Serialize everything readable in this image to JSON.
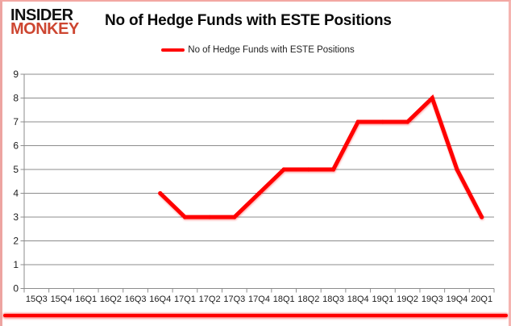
{
  "branding": {
    "logo_line1": "INSIDER",
    "logo_line2": "MONKEY",
    "logo_color_line1": "#111111",
    "logo_color_line2": "#cd4631"
  },
  "header": {
    "title": "No of Hedge Funds with ESTE Positions"
  },
  "legend": {
    "label": "No of Hedge Funds with ESTE Positions",
    "line_color": "#ff0000"
  },
  "chart_data": {
    "type": "line",
    "title": "No of Hedge Funds with ESTE Positions",
    "categories": [
      "15Q3",
      "15Q4",
      "16Q1",
      "16Q2",
      "16Q3",
      "16Q4",
      "17Q1",
      "17Q2",
      "17Q3",
      "17Q4",
      "18Q1",
      "18Q2",
      "18Q3",
      "18Q4",
      "19Q1",
      "19Q2",
      "19Q3",
      "19Q4",
      "20Q1"
    ],
    "series": [
      {
        "name": "No of Hedge Funds with ESTE Positions",
        "color": "#ff0000",
        "values": [
          null,
          null,
          null,
          null,
          null,
          4,
          3,
          3,
          3,
          4,
          5,
          5,
          5,
          7,
          7,
          7,
          8,
          5,
          3
        ]
      }
    ],
    "ylim": [
      0,
      9
    ],
    "yticks": [
      0,
      1,
      2,
      3,
      4,
      5,
      6,
      7,
      8,
      9
    ],
    "grid": "horizontal",
    "legend_position": "top",
    "axis_color": "#8c8c8c",
    "label_color": "#1c1c1c"
  },
  "footer": {
    "rule_color": "#ff0000"
  }
}
